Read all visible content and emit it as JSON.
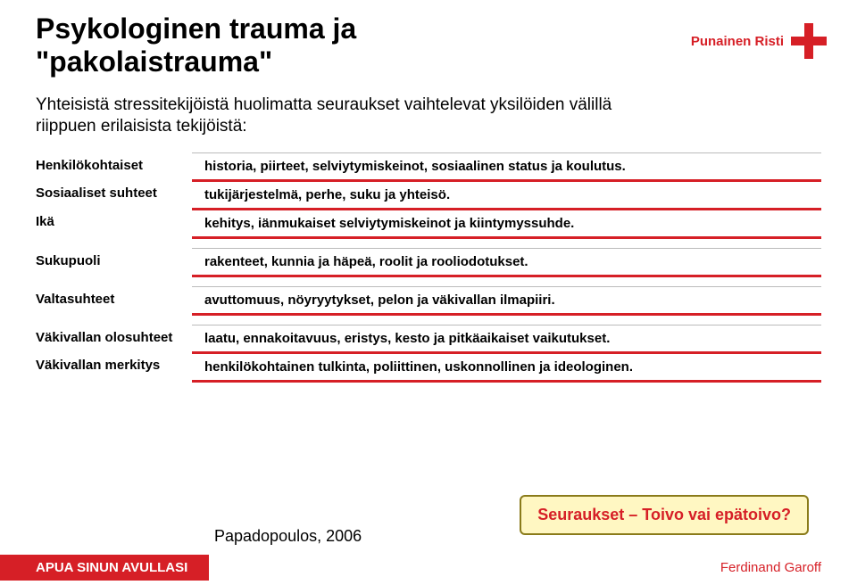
{
  "title": "Psykologinen trauma ja \"pakolaistrauma\"",
  "subtitle": "Yhteisistä stressitekijöistä huolimatta seuraukset vaihtelevat yksilöiden välillä riippuen erilaisista tekijöistä:",
  "logo_text": "Punainen Risti",
  "rows_group1": [
    {
      "key": "Henkilökohtaiset",
      "val": "historia, piirteet, selviytymiskeinot, sosiaalinen status ja koulutus."
    },
    {
      "key": "Sosiaaliset suhteet",
      "val": "tukijärjestelmä, perhe, suku ja yhteisö."
    },
    {
      "key": "Ikä",
      "val": "kehitys, iänmukaiset selviytymiskeinot ja kiintymyssuhde."
    }
  ],
  "rows_group2": [
    {
      "key": "Sukupuoli",
      "val": "rakenteet, kunnia ja häpeä, roolit ja rooliodotukset."
    }
  ],
  "rows_group3": [
    {
      "key": "Valtasuhteet",
      "val": "avuttomuus, nöyryytykset, pelon ja väkivallan ilmapiiri."
    }
  ],
  "rows_group4": [
    {
      "key": "Väkivallan olosuhteet",
      "val": " laatu, ennakoitavuus, eristys, kesto ja pitkäaikaiset vaikutukset."
    },
    {
      "key": "Väkivallan merkitys",
      "val": "henkilökohtainen tulkinta, poliittinen, uskonnollinen ja ideologinen."
    }
  ],
  "citation": "Papadopoulos, 2006",
  "callout": "Seuraukset – Toivo vai epätoivo?",
  "footer_left": "APUA SINUN AVULLASI",
  "footer_right": "Ferdinand Garoff",
  "colors": {
    "brand_red": "#d61f26",
    "callout_bg": "#fff7c2",
    "callout_border": "#8a7b1a",
    "row_top_border": "#bbbbbb",
    "bg": "#ffffff",
    "text": "#000000"
  }
}
